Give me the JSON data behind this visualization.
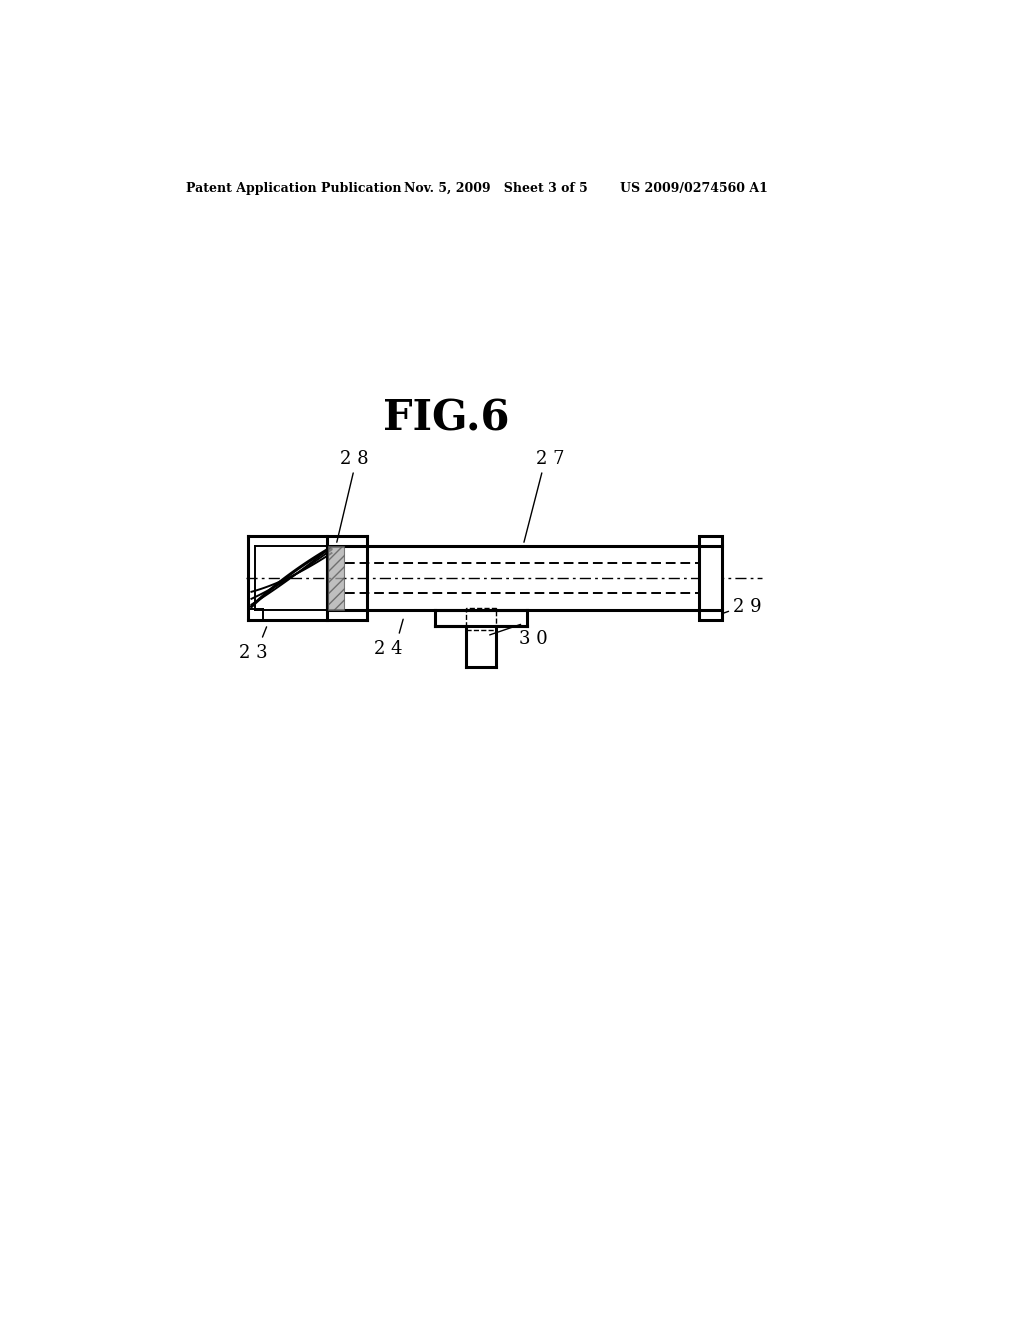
{
  "title": "FIG.6",
  "header_left": "Patent Application Publication",
  "header_mid": "Nov. 5, 2009   Sheet 3 of 5",
  "header_right": "US 2009/0274560 A1",
  "bg_color": "#ffffff",
  "line_color": "#000000",
  "label_23": "2 3",
  "label_24": "2 4",
  "label_27": "2 7",
  "label_28": "2 8",
  "label_29": "2 9",
  "label_30": "3 0"
}
